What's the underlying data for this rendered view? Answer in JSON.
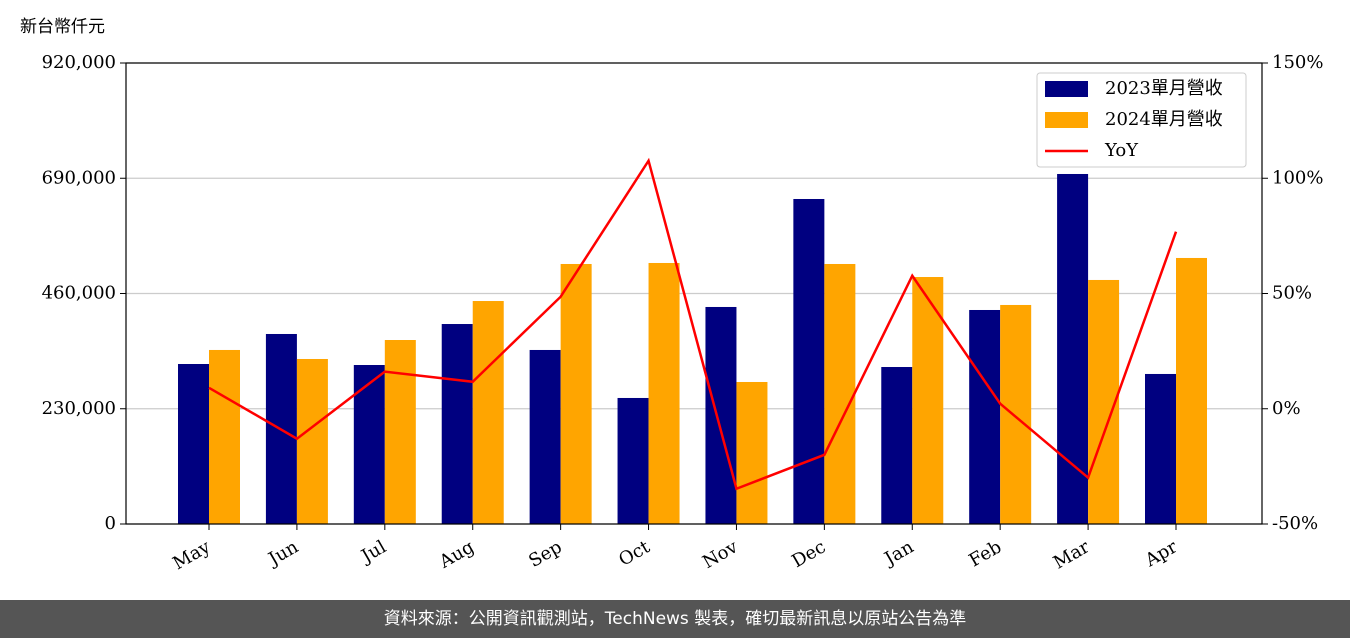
{
  "chart_data": {
    "type": "bar_line",
    "y_label": "新台幣仟元",
    "categories": [
      "May",
      "Jun",
      "Jul",
      "Aug",
      "Sep",
      "Oct",
      "Nov",
      "Dec",
      "Jan",
      "Feb",
      "Mar",
      "Apr"
    ],
    "series": [
      {
        "name": "2023單月營收",
        "color": "#000080",
        "type": "bar",
        "values": [
          319300,
          379200,
          317300,
          399100,
          347300,
          251500,
          433100,
          648600,
          313300,
          427100,
          698500,
          299400
        ]
      },
      {
        "name": "2024單月營收",
        "color": "#ffa500",
        "type": "bar",
        "values": [
          347300,
          329300,
          367200,
          445000,
          518900,
          520900,
          283400,
          518900,
          492900,
          437100,
          487000,
          530900
        ]
      },
      {
        "name": "YoY",
        "color": "#ff0000",
        "type": "line",
        "axis": "y2",
        "values": [
          9.1,
          -13.0,
          16.1,
          11.7,
          48.6,
          107.6,
          -34.7,
          -20.0,
          57.7,
          2.2,
          -29.9,
          76.8
        ]
      }
    ],
    "ylim": [
      0,
      920000
    ],
    "yticks": [
      0,
      {
        "value": 230000,
        "label": "230,000"
      },
      {
        "value": 460000,
        "label": "460,000"
      },
      {
        "value": 690000,
        "label": "690,000"
      },
      {
        "value": 920000,
        "label": "920,000"
      }
    ],
    "y2lim": [
      -50,
      150
    ],
    "y2ticks": [
      {
        "value": -50,
        "label": "-50%"
      },
      {
        "value": 0,
        "label": "0%"
      },
      {
        "value": 50,
        "label": "50%"
      },
      {
        "value": 100,
        "label": "100%"
      },
      {
        "value": 150,
        "label": "150%"
      }
    ],
    "grid": true,
    "legend": "upper right",
    "footer": "資料來源：公開資訊觀測站，TechNews 製表，確切最新訊息以原站公告為準"
  }
}
